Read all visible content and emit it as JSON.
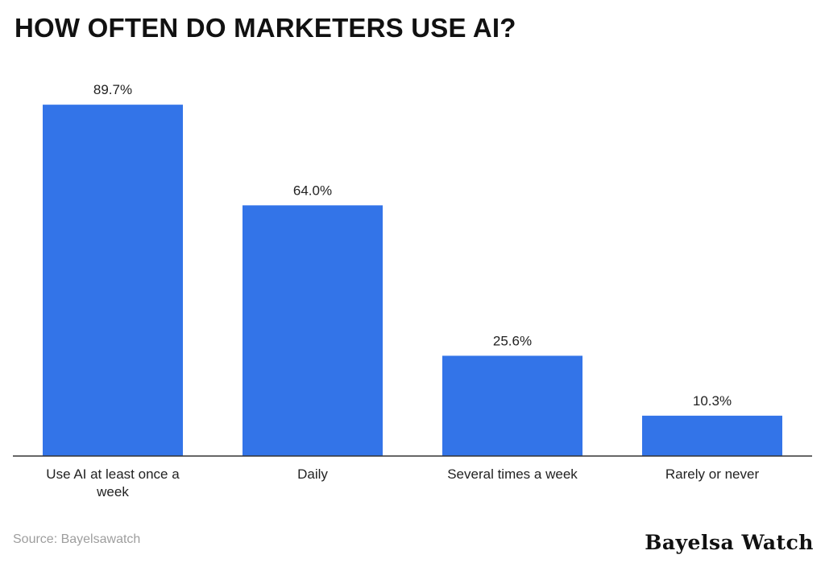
{
  "title": "HOW OFTEN DO MARKETERS USE AI?",
  "source": "Source: Bayelsawatch",
  "brand": "Bayelsa Watch",
  "colors": {
    "bar": "#3374e8",
    "axis": "#333333",
    "text": "#222222",
    "source": "#9e9e9e"
  },
  "chart_data": {
    "type": "bar",
    "categories": [
      "Use AI at least once a week",
      "Daily",
      "Several times a week",
      "Rarely or never"
    ],
    "category_lines": [
      [
        "Use AI at least once a",
        "week"
      ],
      [
        "Daily"
      ],
      [
        "Several times a week"
      ],
      [
        "Rarely or never"
      ]
    ],
    "values": [
      89.7,
      64.0,
      25.6,
      10.3
    ],
    "value_labels": [
      "89.7%",
      "64.0%",
      "25.6%",
      "10.3%"
    ],
    "unit": "%",
    "xlabel": "",
    "ylabel": "",
    "ylim": [
      0,
      100
    ],
    "grid": false,
    "legend": "none"
  }
}
